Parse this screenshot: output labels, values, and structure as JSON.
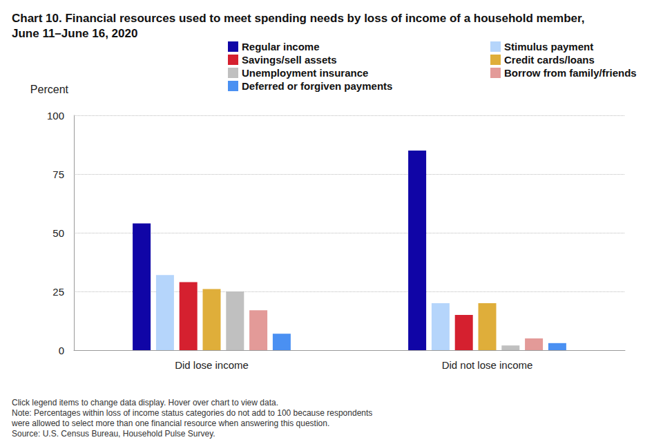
{
  "chart_data": {
    "type": "bar",
    "title": "Chart 10. Financial resources used to meet spending needs by loss of income of a household member, June 11–June 16, 2020",
    "y_label": "Percent",
    "annotations": [
      "Click legend items to change data display. Hover over chart to view data.",
      "Note: Percentages within loss of income status categories do not add to 100 because respondents were allowed to select more than one financial resource when answering this question.",
      "Source: U.S. Census Bureau, Household Pulse Survey."
    ],
    "categories": [
      "Did lose income",
      "Did not lose income"
    ],
    "series": [
      {
        "name": "Regular income",
        "color": "#1005a6",
        "values": [
          54,
          85
        ]
      },
      {
        "name": "Stimulus payment",
        "color": "#b5d5fb",
        "values": [
          32,
          20
        ]
      },
      {
        "name": "Savings/sell assets",
        "color": "#d5202f",
        "values": [
          29,
          15
        ]
      },
      {
        "name": "Credit cards/loans",
        "color": "#dfae3a",
        "values": [
          26,
          20
        ]
      },
      {
        "name": "Unemployment insurance",
        "color": "#c0c0c0",
        "values": [
          25,
          2
        ]
      },
      {
        "name": "Borrow from family/friends",
        "color": "#e39a98",
        "values": [
          17,
          5
        ]
      },
      {
        "name": "Deferred or forgiven payments",
        "color": "#4a90f2",
        "values": [
          7,
          3
        ]
      }
    ],
    "ylim": [
      0,
      100
    ],
    "yticks": [
      0,
      25,
      50,
      75,
      100
    ],
    "grid": true,
    "legend": "top"
  }
}
